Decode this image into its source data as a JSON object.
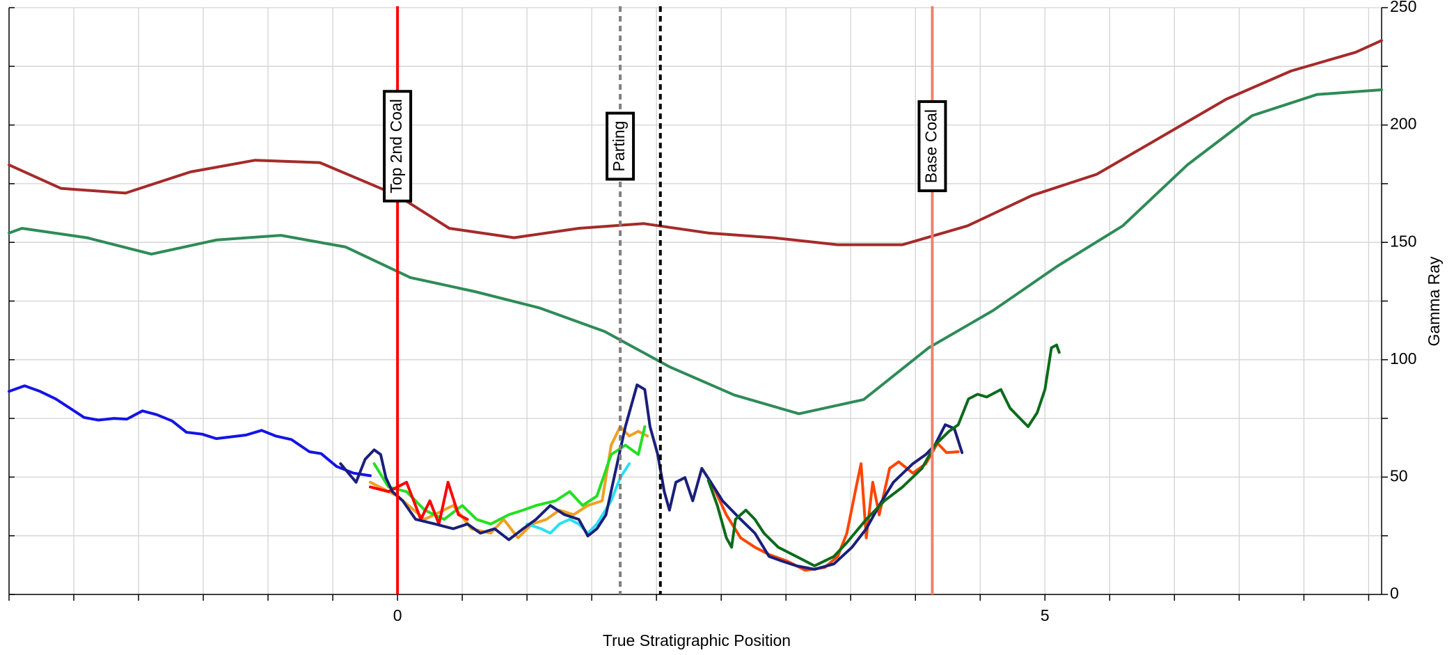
{
  "chart_data": {
    "type": "line",
    "xlabel": "True Stratigraphic Position",
    "ylabel": "Gamma Ray",
    "xlim": [
      -3,
      7.6
    ],
    "xticks": [
      0,
      5
    ],
    "xminor": [
      -3,
      -2.5,
      -2,
      -1.5,
      -1,
      -0.5,
      0.5,
      1,
      1.5,
      2,
      2.5,
      3,
      3.5,
      4,
      4.5,
      5.5,
      6,
      6.5,
      7,
      7.5
    ],
    "ylim": [
      0,
      250
    ],
    "yticks": [
      0,
      50,
      100,
      150,
      200,
      250
    ],
    "yminor": [
      25,
      75,
      125,
      175,
      225
    ],
    "grid": true,
    "markers": [
      {
        "label": "Top 2nd Coal",
        "x": 0,
        "color": "#ff0000",
        "style": "solid"
      },
      {
        "label": "Parting",
        "x": 1.72,
        "color": "#808080",
        "style": "dashed"
      },
      {
        "x": 2.03,
        "color": "#000000",
        "style": "dashed"
      },
      {
        "label": "Base Coal",
        "x": 4.13,
        "color": "#f08070",
        "style": "solid"
      }
    ],
    "series": [
      {
        "color": "#a52a2a",
        "x": [
          -3.0,
          -2.6,
          -2.1,
          -1.6,
          -1.1,
          -0.6,
          0,
          0.4,
          0.9,
          1.4,
          1.9,
          2.4,
          2.9,
          3.4,
          3.9,
          4.4,
          4.9,
          5.4,
          5.9,
          6.4,
          6.9,
          7.4,
          7.6
        ],
        "values": [
          183,
          173,
          171,
          180,
          185,
          184,
          170,
          156,
          152,
          156,
          158,
          154,
          152,
          149,
          149,
          157,
          170,
          179,
          195,
          211,
          223,
          231,
          236
        ]
      },
      {
        "color": "#2e8b57",
        "x": [
          -3.0,
          -2.9,
          -2.4,
          -1.9,
          -1.4,
          -0.9,
          -0.4,
          0.1,
          0.6,
          1.1,
          1.6,
          2.1,
          2.6,
          3.1,
          3.6,
          4.1,
          4.6,
          5.1,
          5.6,
          6.1,
          6.6,
          7.1,
          7.6
        ],
        "values": [
          154,
          156,
          152,
          145,
          151,
          153,
          148,
          135,
          129,
          122,
          112,
          97,
          85,
          77,
          83,
          105,
          121,
          140,
          157,
          183,
          204,
          213,
          215
        ]
      },
      {
        "color": "#1414e6",
        "x": [
          -3.0,
          -2.88,
          -2.76,
          -2.64,
          -2.52,
          -2.42,
          -2.31,
          -2.19,
          -2.09,
          -1.97,
          -1.86,
          -1.74,
          -1.63,
          -1.51,
          -1.4,
          -1.17,
          -1.05,
          -0.94,
          -0.82,
          -0.68,
          -0.59,
          -0.47,
          -0.34,
          -0.21
        ],
        "values": [
          86.5,
          88.9,
          86.5,
          83.3,
          79,
          75.4,
          74.3,
          75,
          74.7,
          78.2,
          76.6,
          73.9,
          69.1,
          68.3,
          66.4,
          67.9,
          69.9,
          67.5,
          66,
          60.8,
          60,
          54.5,
          51.7,
          50.6
        ]
      },
      {
        "color": "#f0a020",
        "x": [
          -0.21,
          0,
          0.21,
          0.43,
          0.57,
          0.72,
          0.82,
          0.93,
          1.04,
          1.15,
          1.25,
          1.36,
          1.47,
          1.58,
          1.65,
          1.72,
          1.79,
          1.86,
          1.93
        ],
        "values": [
          47.8,
          41.9,
          32.0,
          37.9,
          28.0,
          26.1,
          32.0,
          24.1,
          30.0,
          32.0,
          35.9,
          34.0,
          37.9,
          39.9,
          63.6,
          71.5,
          67.5,
          69.5,
          67.5
        ]
      },
      {
        "color": "#28e0f0",
        "x": [
          1.0,
          1.11,
          1.18,
          1.25,
          1.33,
          1.4,
          1.47,
          1.54,
          1.65,
          1.72,
          1.79
        ],
        "values": [
          30.0,
          28.0,
          26.1,
          30.0,
          32.0,
          30.0,
          26.1,
          30.0,
          39.9,
          49.8,
          55.7
        ]
      },
      {
        "color": "#22e022",
        "x": [
          -0.18,
          -0.07,
          0.07,
          0.21,
          0.36,
          0.5,
          0.61,
          0.72,
          0.86,
          0.97,
          1.07,
          1.22,
          1.33,
          1.43,
          1.54,
          1.65,
          1.76,
          1.86,
          1.91
        ],
        "values": [
          55.7,
          45.8,
          43.8,
          35.9,
          32.0,
          37.9,
          32.0,
          30.0,
          34.0,
          35.9,
          37.9,
          39.9,
          43.8,
          37.9,
          41.9,
          59.6,
          63.6,
          59.6,
          71.5
        ]
      },
      {
        "color": "#ff0000",
        "x": [
          -0.21,
          -0.07,
          0.07,
          0.18,
          0.25,
          0.32,
          0.39,
          0.47,
          0.54
        ],
        "values": [
          45.8,
          43.8,
          47.8,
          32.0,
          39.9,
          30.0,
          47.8,
          34.0,
          32.0
        ]
      },
      {
        "color": "#ff4500",
        "x": [
          2.44,
          2.54,
          2.65,
          2.76,
          2.87,
          3.01,
          3.15,
          3.3,
          3.4,
          3.47,
          3.55,
          3.58,
          3.62,
          3.67,
          3.72,
          3.8,
          3.87,
          3.98,
          4.08,
          4.17,
          4.24,
          4.33
        ],
        "values": [
          45.8,
          33.9,
          24.1,
          20.1,
          17.0,
          14.2,
          10.3,
          11.5,
          16.2,
          26.1,
          47.8,
          55.7,
          24.1,
          47.8,
          33.9,
          53.7,
          56.5,
          51.7,
          55.7,
          64.4,
          60.4,
          60.8
        ]
      },
      {
        "color": "#1a1f7a",
        "x": [
          -0.44,
          -0.32,
          -0.25,
          -0.18,
          -0.13,
          -0.09,
          -0.04,
          0.04,
          0.14,
          0.29,
          0.43,
          0.54,
          0.64,
          0.75,
          0.86,
          0.97,
          1.07,
          1.18,
          1.29,
          1.4,
          1.47,
          1.54,
          1.61,
          1.68,
          1.76,
          1.85,
          1.91,
          1.95,
          2.01,
          2.06,
          2.1,
          2.15,
          2.22,
          2.28,
          2.35,
          2.42,
          2.51,
          2.65,
          2.76,
          2.87,
          2.97,
          3.08,
          3.22,
          3.37,
          3.51,
          3.62,
          3.72,
          3.83,
          3.98,
          4.08,
          4.15,
          4.23,
          4.3,
          4.36
        ],
        "values": [
          55.7,
          47.8,
          57.6,
          61.6,
          59.6,
          49.8,
          43.8,
          39.9,
          32.0,
          30.0,
          28.0,
          30.0,
          26.1,
          28.0,
          23.3,
          28.0,
          32.0,
          37.9,
          34.0,
          32.0,
          24.9,
          28.0,
          33.9,
          51.7,
          71.5,
          89.3,
          87.3,
          71.5,
          59.6,
          43.8,
          35.9,
          47.8,
          49.8,
          39.9,
          53.7,
          47.8,
          39.9,
          32.0,
          26.1,
          16.2,
          14.2,
          12.2,
          10.7,
          13.0,
          20.1,
          28.0,
          37.9,
          47.8,
          55.7,
          59.6,
          63.6,
          72.3,
          70.7,
          60.4
        ]
      },
      {
        "color": "#0b6b1a",
        "x": [
          2.4,
          2.47,
          2.54,
          2.58,
          2.61,
          2.69,
          2.76,
          2.83,
          2.94,
          3.08,
          3.22,
          3.37,
          3.47,
          3.62,
          3.76,
          3.9,
          4.05,
          4.15,
          4.26,
          4.33,
          4.41,
          4.48,
          4.55,
          4.66,
          4.73,
          4.8,
          4.87,
          4.94,
          5.0,
          5.05,
          5.09,
          5.11
        ],
        "values": [
          48.6,
          37.9,
          24.1,
          20.1,
          32.0,
          35.9,
          32.0,
          26.1,
          20.1,
          16.2,
          12.2,
          16.2,
          22.1,
          32.0,
          39.9,
          45.8,
          53.7,
          63.6,
          69.5,
          72.3,
          83.3,
          85.3,
          84.1,
          87.3,
          79.4,
          75.4,
          71.5,
          77.4,
          87.3,
          105.1,
          106.3,
          103.1
        ]
      }
    ]
  }
}
